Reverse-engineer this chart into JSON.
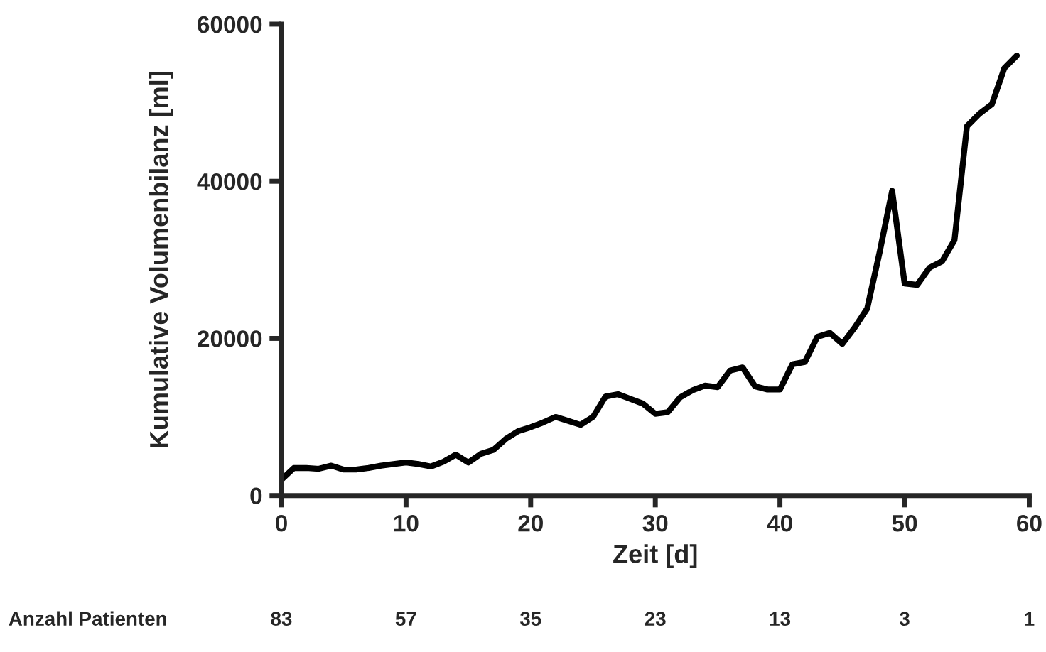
{
  "chart_data": {
    "type": "line",
    "xlabel": "Zeit [d]",
    "ylabel": "Kumulative Volumenbilanz [ml]",
    "x": [
      0,
      1,
      2,
      3,
      4,
      5,
      6,
      7,
      8,
      9,
      10,
      11,
      12,
      13,
      14,
      15,
      16,
      17,
      18,
      19,
      20,
      21,
      22,
      23,
      24,
      25,
      26,
      27,
      28,
      29,
      30,
      31,
      32,
      33,
      34,
      35,
      36,
      37,
      38,
      39,
      40,
      41,
      42,
      43,
      44,
      45,
      46,
      47,
      48,
      49,
      50,
      51,
      52,
      53,
      54,
      55,
      56,
      57,
      58,
      59
    ],
    "series": [
      {
        "color": "#000000",
        "values": [
          2000,
          3500,
          3500,
          3400,
          3800,
          3300,
          3300,
          3500,
          3800,
          4000,
          4200,
          4000,
          3700,
          4300,
          5200,
          4200,
          5300,
          5800,
          7200,
          8200,
          8700,
          9300,
          10000,
          9500,
          9000,
          10000,
          12600,
          12900,
          12300,
          11700,
          10400,
          10600,
          12500,
          13400,
          14000,
          13800,
          15900,
          16300,
          13900,
          13500,
          13500,
          16700,
          17000,
          20200,
          20700,
          19300,
          21400,
          23800,
          31000,
          38800,
          27000,
          26800,
          29000,
          29800,
          32500,
          47000,
          48600,
          49800,
          54400,
          56000
        ]
      }
    ],
    "xlim": [
      0,
      60
    ],
    "xticks": [
      0,
      10,
      20,
      30,
      40,
      50,
      60
    ],
    "ylim": [
      0,
      60000
    ],
    "yticks": [
      0,
      20000,
      40000,
      60000
    ],
    "annotations": [
      "Anzahl Patienten",
      "83",
      "57",
      "35",
      "23",
      "13",
      "3",
      "1"
    ],
    "grid": false,
    "marker": "none",
    "line_style": "solid"
  }
}
